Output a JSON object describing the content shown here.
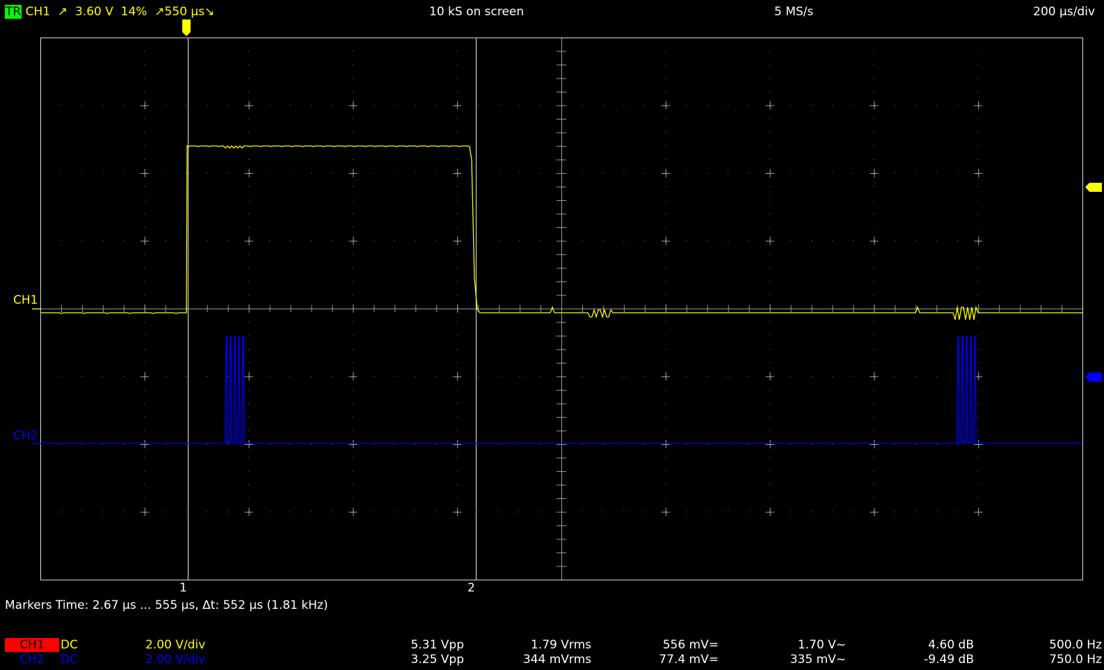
{
  "colors": {
    "ch1": "#ffff00",
    "ch2": "#0000ff",
    "grid": "#cccccc",
    "trig_badge": "#00ff00",
    "ch1_label_bg": "#ff0000"
  },
  "header": {
    "trigger_badge": "TR",
    "trigger_channel": "CH1",
    "trigger_slope": "↗",
    "trigger_level": "3.60 V",
    "trigger_percent": "14%",
    "trigger_delay": "↗550 µs↘",
    "samples_on_screen": "10 kS on screen",
    "sample_rate": "5 MS/s",
    "timebase": "200 µs/div"
  },
  "screen": {
    "ch1_label": "CH1",
    "ch2_label": "CH2",
    "marker1_label": "1",
    "marker2_label": "2"
  },
  "markers_line": "Markers  Time: 2.67 µs ... 555 µs,  Δt: 552 µs (1.81 kHz)",
  "channels": [
    {
      "name": "CH1",
      "coupling": "DC",
      "scale": "2.00 V/div",
      "vpp": "5.31 Vpp",
      "vrms": "1.79 Vrms",
      "dc": "556 mV=",
      "ac": "1.70 V~",
      "db": "4.60 dB",
      "freq": "500.0 Hz"
    },
    {
      "name": "CH2",
      "coupling": "DC",
      "scale": "2.00 V/div",
      "vpp": "3.25 Vpp",
      "vrms": "344 mVrms",
      "dc": "77.4 mV=",
      "ac": "335 mV~",
      "db": "-9.49 dB",
      "freq": "750.0 Hz"
    }
  ],
  "icons": {
    "trigger_position": "trigger-position-marker-icon",
    "ch1_offset": "ch1-offset-arrow-icon",
    "ch2_offset": "ch2-offset-arrow-icon"
  }
}
